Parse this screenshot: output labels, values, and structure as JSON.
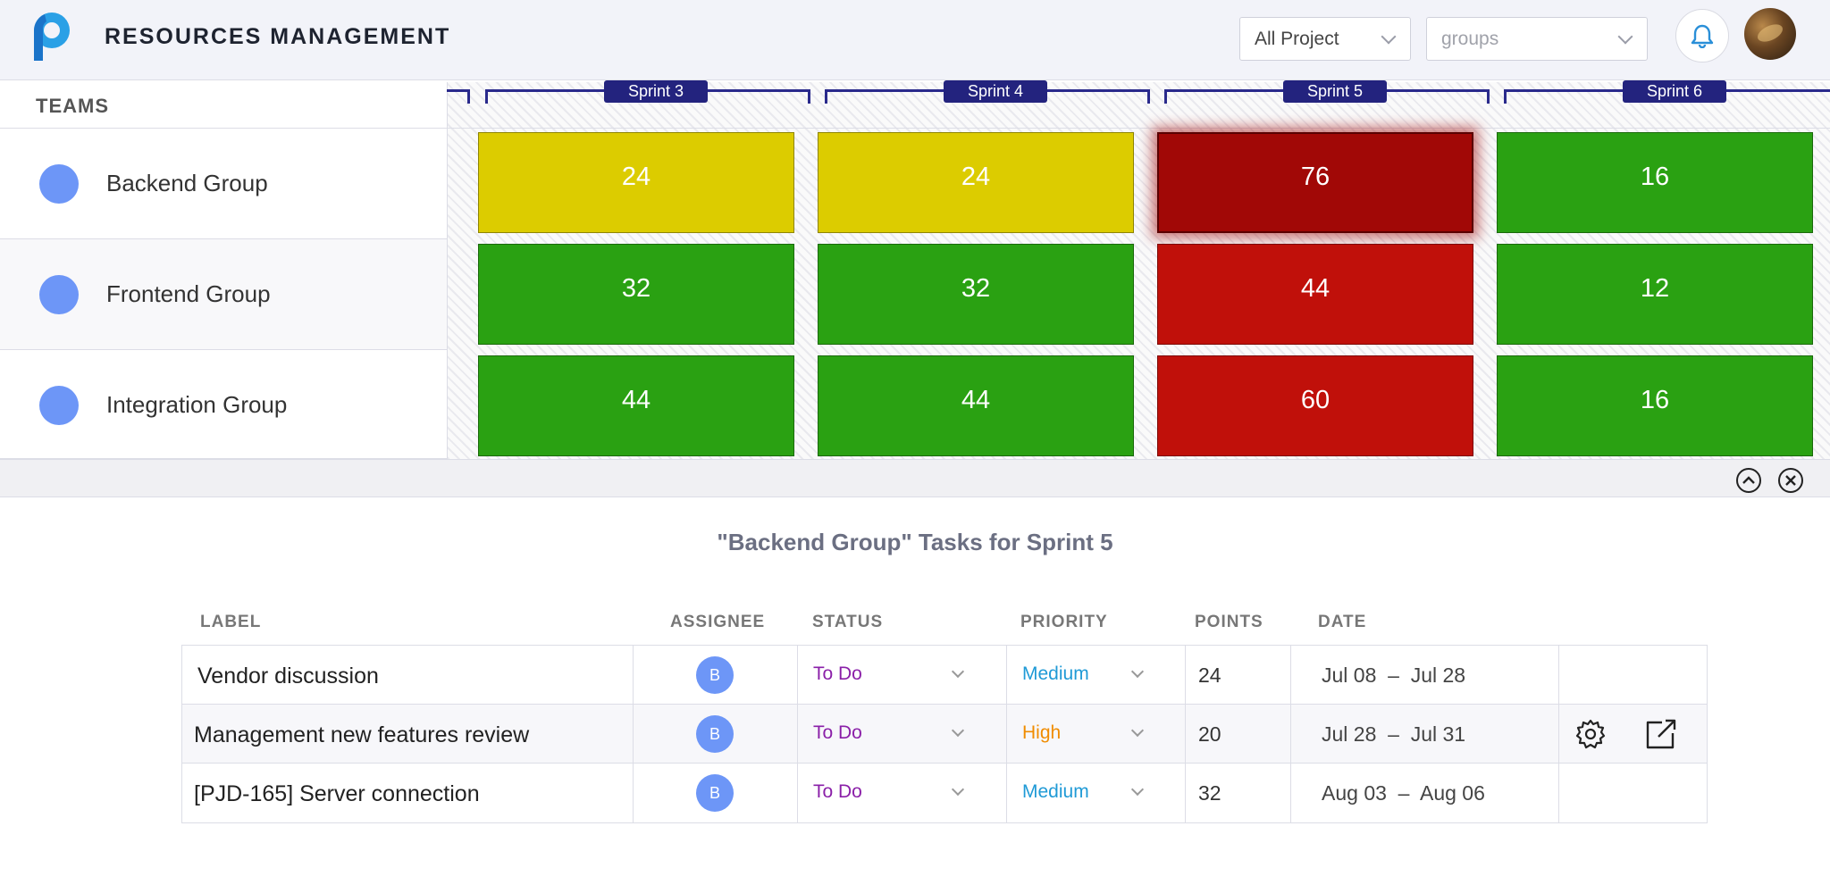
{
  "header": {
    "app_title": "RESOURCES MANAGEMENT",
    "project_select": "All Project",
    "groups_select_placeholder": "groups"
  },
  "teams": {
    "title": "TEAMS",
    "items": [
      {
        "name": "Backend Group"
      },
      {
        "name": "Frontend Group"
      },
      {
        "name": "Integration Group"
      }
    ]
  },
  "sprints": [
    "Sprint 3",
    "Sprint 4",
    "Sprint 5",
    "Sprint 6"
  ],
  "capacity": [
    [
      24,
      24,
      76,
      16
    ],
    [
      32,
      32,
      44,
      12
    ],
    [
      44,
      44,
      60,
      16
    ]
  ],
  "cell_colors": [
    [
      "#dccc00",
      "#dccc00",
      "#a10806",
      "#2aa112"
    ],
    [
      "#2aa112",
      "#2aa112",
      "#c0100a",
      "#2aa112"
    ],
    [
      "#2aa112",
      "#2aa112",
      "#c0100a",
      "#2aa112"
    ]
  ],
  "selected_cell": {
    "team": "Backend Group",
    "sprint": "Sprint 5"
  },
  "tasks_panel": {
    "title": "\"Backend Group\" Tasks for Sprint 5",
    "columns": [
      "LABEL",
      "ASSIGNEE",
      "STATUS",
      "PRIORITY",
      "POINTS",
      "DATE"
    ],
    "rows": [
      {
        "label": "Vendor discussion",
        "assignee": "B",
        "status": "To Do",
        "priority": "Medium",
        "priority_color": "#1f9ad6",
        "points": "24",
        "date": "Jul 08  –  Jul 28"
      },
      {
        "label": "Management new features review",
        "assignee": "B",
        "status": "To Do",
        "priority": "High",
        "priority_color": "#f08c00",
        "points": "20",
        "date": "Jul 28  –  Jul 31"
      },
      {
        "label": "[PJD-165] Server connection",
        "assignee": "B",
        "status": "To Do",
        "priority": "Medium",
        "priority_color": "#1f9ad6",
        "points": "32",
        "date": "Aug 03  –  Aug 06"
      }
    ]
  },
  "icons": {
    "logo": "p-logo-icon",
    "notifications": "bell-icon",
    "collapse": "chevron-up-circle-icon",
    "close": "close-circle-icon",
    "row_settings": "gear-icon",
    "row_open": "external-link-icon"
  }
}
